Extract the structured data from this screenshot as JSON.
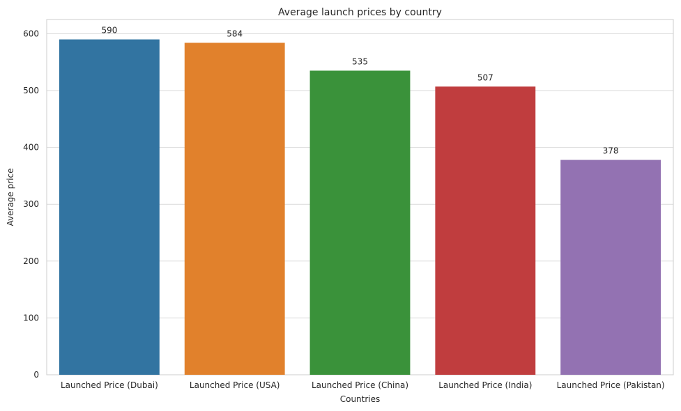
{
  "chart_data": {
    "type": "bar",
    "title": "Average launch prices by country",
    "xlabel": "Countries",
    "ylabel": "Average price",
    "categories": [
      "Launched Price (Dubai)",
      "Launched Price (USA)",
      "Launched Price (China)",
      "Launched Price (India)",
      "Launched Price (Pakistan)"
    ],
    "values": [
      590,
      584,
      535,
      507,
      378
    ],
    "data_labels": [
      "590",
      "584",
      "535",
      "507",
      "378"
    ],
    "colors": [
      "#3274a1",
      "#e1812c",
      "#3a923a",
      "#c03d3e",
      "#9372b2"
    ],
    "ylim": [
      0,
      625
    ],
    "yticks": [
      0,
      100,
      200,
      300,
      400,
      500,
      600
    ],
    "grid": true,
    "legend": false
  }
}
